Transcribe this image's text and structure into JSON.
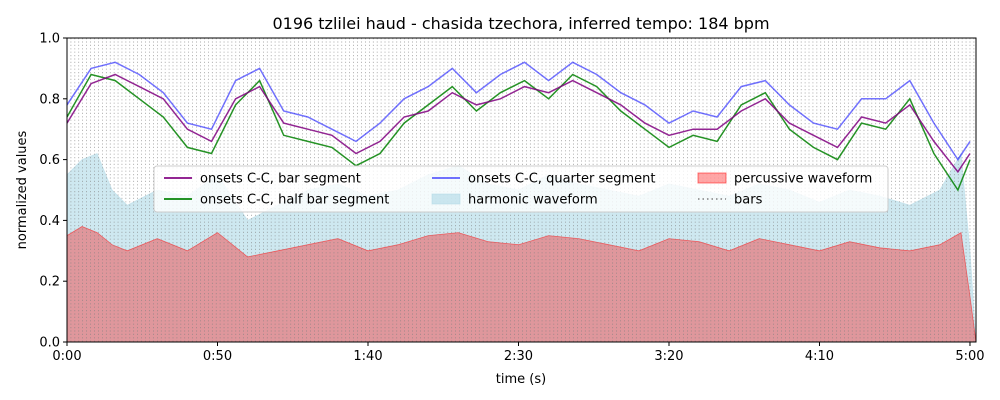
{
  "chart_data": {
    "type": "line",
    "title": "0196 tzlilei haud - chasida tzechora, inferred tempo: 184 bpm",
    "xlabel": "time (s)",
    "ylabel": "normalized values",
    "xlim": [
      0,
      302
    ],
    "ylim": [
      0,
      1
    ],
    "xticks": [
      0,
      50,
      100,
      150,
      200,
      250,
      300
    ],
    "xtick_labels": [
      "0:00",
      "0:50",
      "1:40",
      "2:30",
      "3:20",
      "4:10",
      "5:00"
    ],
    "yticks": [
      0,
      0.2,
      0.4,
      0.6,
      0.8,
      1.0
    ],
    "ytick_labels": [
      "0.0",
      "0.2",
      "0.4",
      "0.6",
      "0.8",
      "1.0"
    ],
    "tempo_bpm": 184,
    "legend_position": "center",
    "legend_columns": 3,
    "series": [
      {
        "key": "bar",
        "name": "onsets C-C, bar segment",
        "color": "#800080",
        "kind": "line",
        "x": [
          0,
          8,
          16,
          24,
          32,
          40,
          48,
          56,
          64,
          72,
          80,
          88,
          96,
          104,
          112,
          120,
          128,
          136,
          144,
          152,
          160,
          168,
          176,
          184,
          192,
          200,
          208,
          216,
          224,
          232,
          240,
          248,
          256,
          264,
          272,
          280,
          288,
          296,
          300
        ],
        "y": [
          0.72,
          0.85,
          0.88,
          0.84,
          0.8,
          0.7,
          0.66,
          0.8,
          0.84,
          0.72,
          0.7,
          0.68,
          0.62,
          0.66,
          0.74,
          0.76,
          0.82,
          0.78,
          0.8,
          0.84,
          0.82,
          0.86,
          0.82,
          0.78,
          0.72,
          0.68,
          0.7,
          0.7,
          0.76,
          0.8,
          0.72,
          0.68,
          0.64,
          0.74,
          0.72,
          0.78,
          0.66,
          0.56,
          0.62
        ]
      },
      {
        "key": "half",
        "name": "onsets C-C, half bar segment",
        "color": "#008000",
        "kind": "line",
        "x": [
          0,
          8,
          16,
          24,
          32,
          40,
          48,
          56,
          64,
          72,
          80,
          88,
          96,
          104,
          112,
          120,
          128,
          136,
          144,
          152,
          160,
          168,
          176,
          184,
          192,
          200,
          208,
          216,
          224,
          232,
          240,
          248,
          256,
          264,
          272,
          280,
          288,
          296,
          300
        ],
        "y": [
          0.74,
          0.88,
          0.86,
          0.8,
          0.74,
          0.64,
          0.62,
          0.78,
          0.86,
          0.68,
          0.66,
          0.64,
          0.58,
          0.62,
          0.72,
          0.78,
          0.84,
          0.76,
          0.82,
          0.86,
          0.8,
          0.88,
          0.84,
          0.76,
          0.7,
          0.64,
          0.68,
          0.66,
          0.78,
          0.82,
          0.7,
          0.64,
          0.6,
          0.72,
          0.7,
          0.8,
          0.62,
          0.5,
          0.6
        ]
      },
      {
        "key": "quarter",
        "name": "onsets C-C, quarter segment",
        "color": "#0000ff",
        "kind": "line",
        "x": [
          0,
          8,
          16,
          24,
          32,
          40,
          48,
          56,
          64,
          72,
          80,
          88,
          96,
          104,
          112,
          120,
          128,
          136,
          144,
          152,
          160,
          168,
          176,
          184,
          192,
          200,
          208,
          216,
          224,
          232,
          240,
          248,
          256,
          264,
          272,
          280,
          288,
          296,
          300
        ],
        "y": [
          0.78,
          0.9,
          0.92,
          0.88,
          0.82,
          0.72,
          0.7,
          0.86,
          0.9,
          0.76,
          0.74,
          0.7,
          0.66,
          0.72,
          0.8,
          0.84,
          0.9,
          0.82,
          0.88,
          0.92,
          0.86,
          0.92,
          0.88,
          0.82,
          0.78,
          0.72,
          0.76,
          0.74,
          0.84,
          0.86,
          0.78,
          0.72,
          0.7,
          0.8,
          0.8,
          0.86,
          0.72,
          0.6,
          0.66
        ]
      },
      {
        "key": "harmonic",
        "name": "harmonic waveform",
        "color": "#add8e6",
        "kind": "area",
        "x": [
          0,
          5,
          10,
          15,
          20,
          30,
          40,
          50,
          60,
          70,
          80,
          90,
          100,
          110,
          120,
          130,
          140,
          150,
          160,
          170,
          180,
          190,
          200,
          210,
          220,
          230,
          240,
          250,
          260,
          270,
          280,
          290,
          297,
          300,
          302
        ],
        "y": [
          0.55,
          0.6,
          0.62,
          0.5,
          0.45,
          0.5,
          0.48,
          0.55,
          0.4,
          0.45,
          0.5,
          0.52,
          0.48,
          0.5,
          0.55,
          0.58,
          0.52,
          0.5,
          0.55,
          0.52,
          0.5,
          0.48,
          0.52,
          0.5,
          0.48,
          0.52,
          0.5,
          0.46,
          0.5,
          0.48,
          0.45,
          0.5,
          0.62,
          0.3,
          0.0
        ]
      },
      {
        "key": "percussive",
        "name": "percussive waveform",
        "color": "#ff0000",
        "kind": "area",
        "x": [
          0,
          5,
          10,
          15,
          20,
          30,
          40,
          50,
          60,
          70,
          80,
          90,
          100,
          110,
          120,
          130,
          140,
          150,
          160,
          170,
          180,
          190,
          200,
          210,
          220,
          230,
          240,
          250,
          260,
          270,
          280,
          290,
          297,
          300,
          302
        ],
        "y": [
          0.35,
          0.38,
          0.36,
          0.32,
          0.3,
          0.34,
          0.3,
          0.36,
          0.28,
          0.3,
          0.32,
          0.34,
          0.3,
          0.32,
          0.35,
          0.36,
          0.33,
          0.32,
          0.35,
          0.34,
          0.32,
          0.3,
          0.34,
          0.33,
          0.3,
          0.34,
          0.32,
          0.3,
          0.33,
          0.31,
          0.3,
          0.32,
          0.36,
          0.15,
          0.0
        ]
      },
      {
        "key": "bars",
        "name": "bars",
        "color": "#808080",
        "kind": "vlines"
      }
    ]
  }
}
